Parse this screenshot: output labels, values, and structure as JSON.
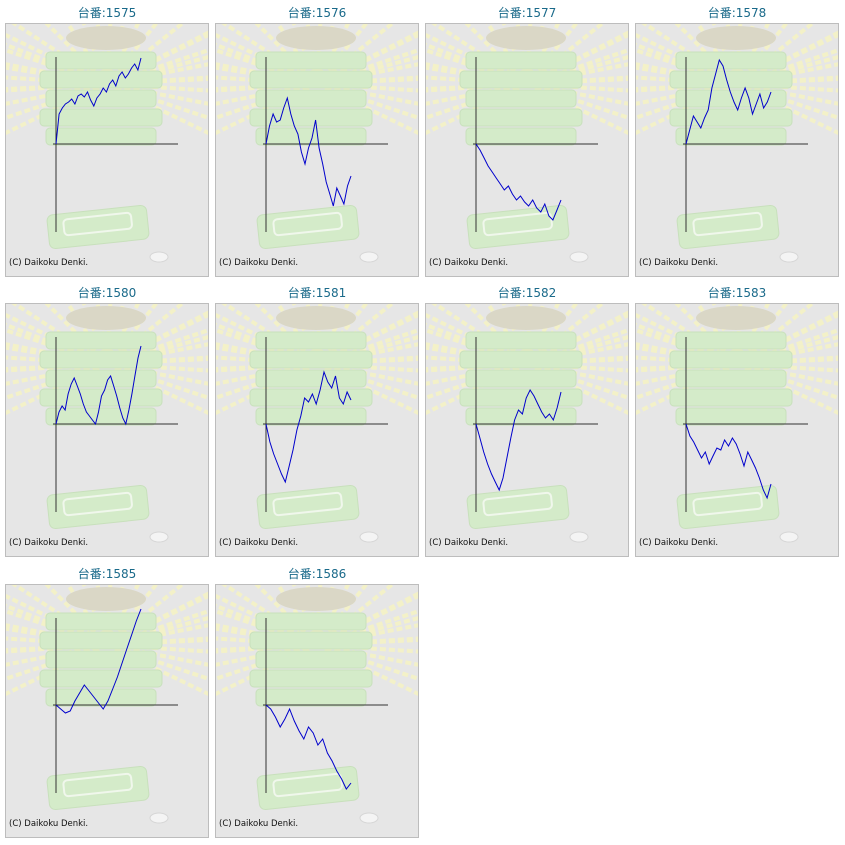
{
  "page": {
    "copyright": "(C) Daikoku Denki."
  },
  "colors": {
    "title": "#1a6a8a",
    "line": "#0000cc",
    "background": "#e6e6e6",
    "ray": "#f3f1c8",
    "machine": "#d4ebc9"
  },
  "machines": [
    {
      "label": "台番:1575",
      "values": [
        0,
        30,
        36,
        40,
        42,
        45,
        40,
        48,
        50,
        47,
        52,
        44,
        38,
        46,
        50,
        56,
        52,
        60,
        64,
        58,
        68,
        72,
        66,
        70,
        76,
        80,
        74,
        86
      ]
    },
    {
      "label": "台番:1576",
      "values": [
        0,
        18,
        30,
        22,
        24,
        36,
        46,
        30,
        18,
        10,
        -8,
        -20,
        -4,
        6,
        24,
        -4,
        -20,
        -38,
        -50,
        -62,
        -44,
        -52,
        -60,
        -42,
        -32
      ]
    },
    {
      "label": "台番:1577",
      "values": [
        0,
        -6,
        -14,
        -22,
        -28,
        -34,
        -40,
        -46,
        -42,
        -50,
        -56,
        -52,
        -58,
        -62,
        -56,
        -64,
        -68,
        -60,
        -72,
        -76,
        -66,
        -56
      ]
    },
    {
      "label": "台番:1578",
      "values": [
        0,
        14,
        28,
        22,
        16,
        26,
        34,
        56,
        70,
        84,
        78,
        64,
        52,
        42,
        34,
        46,
        56,
        46,
        30,
        40,
        50,
        36,
        42,
        52
      ]
    },
    {
      "label": "台番:1580",
      "values": [
        0,
        12,
        18,
        14,
        30,
        40,
        46,
        38,
        30,
        20,
        12,
        8,
        4,
        0,
        12,
        28,
        34,
        44,
        48,
        38,
        28,
        16,
        6,
        0,
        14,
        30,
        48,
        66,
        78
      ]
    },
    {
      "label": "台番:1581",
      "values": [
        0,
        -18,
        -30,
        -40,
        -50,
        -58,
        -42,
        -26,
        -6,
        8,
        26,
        22,
        30,
        20,
        34,
        52,
        42,
        36,
        48,
        26,
        20,
        32,
        24
      ]
    },
    {
      "label": "台番:1582",
      "values": [
        0,
        -14,
        -28,
        -40,
        -50,
        -58,
        -66,
        -54,
        -34,
        -14,
        4,
        14,
        10,
        26,
        34,
        28,
        20,
        12,
        6,
        10,
        4,
        16,
        32
      ]
    },
    {
      "label": "台番:1583",
      "values": [
        0,
        -12,
        -18,
        -26,
        -34,
        -28,
        -40,
        -32,
        -24,
        -26,
        -16,
        -22,
        -14,
        -20,
        -30,
        -42,
        -28,
        -36,
        -44,
        -54,
        -66,
        -74,
        -60
      ]
    },
    {
      "label": "台番:1585",
      "values": [
        0,
        -4,
        -8,
        -6,
        4,
        12,
        20,
        14,
        8,
        2,
        -4,
        4,
        16,
        28,
        42,
        56,
        70,
        84,
        96
      ]
    },
    {
      "label": "台番:1586",
      "values": [
        0,
        -4,
        -12,
        -22,
        -14,
        -4,
        -16,
        -26,
        -34,
        -22,
        -28,
        -40,
        -34,
        -48,
        -56,
        -66,
        -74,
        -84,
        -78
      ]
    }
  ]
}
